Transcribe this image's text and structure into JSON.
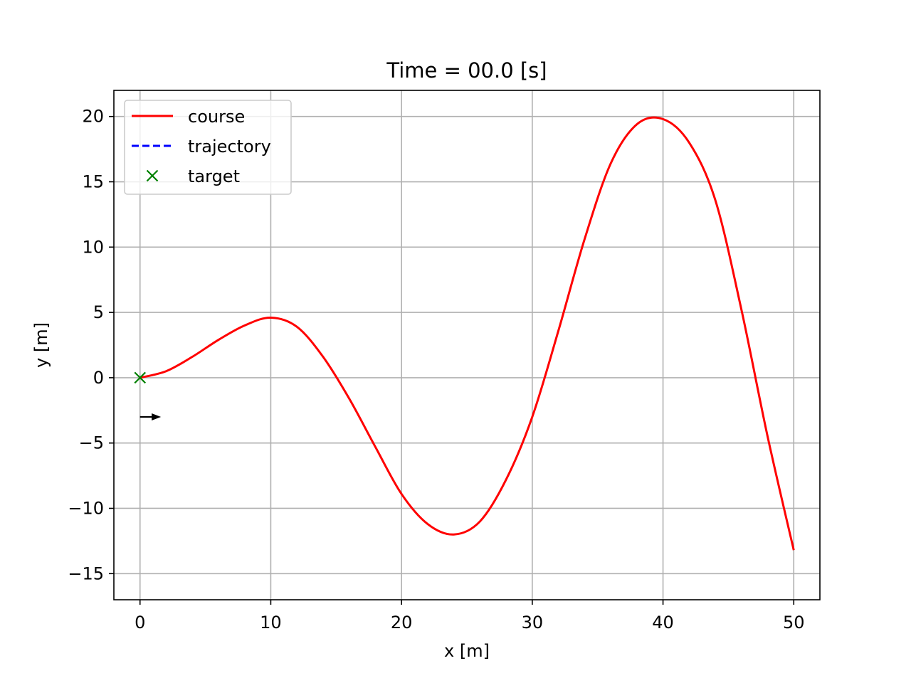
{
  "chart_data": {
    "type": "line",
    "title": "Time = 00.0 [s]",
    "xlabel": "x [m]",
    "ylabel": "y [m]",
    "xlim": [
      -2.0,
      52.0
    ],
    "ylim": [
      -17.0,
      22.0
    ],
    "grid": true,
    "legend_position": "top-left",
    "x_ticks": [
      0,
      10,
      20,
      30,
      40,
      50
    ],
    "x_tick_labels": [
      "0",
      "10",
      "20",
      "30",
      "40",
      "50"
    ],
    "y_ticks": [
      -15,
      -10,
      -5,
      0,
      5,
      10,
      15,
      20
    ],
    "y_tick_labels": [
      "−15",
      "−10",
      "−5",
      "0",
      "5",
      "10",
      "15",
      "20"
    ],
    "colors": {
      "course": "#ff0000",
      "trajectory": "#0000ff",
      "target": "#008000",
      "heading_arrow": "#000000"
    },
    "series": [
      {
        "name": "course",
        "style": "solid",
        "x": [
          0,
          2,
          4,
          6,
          8,
          10,
          12,
          14,
          16,
          18,
          20,
          22,
          24,
          26,
          28,
          30,
          32,
          34,
          36,
          38,
          40,
          42,
          44,
          46,
          48,
          50
        ],
        "y": [
          0.0,
          0.5,
          1.6,
          2.9,
          4.0,
          4.6,
          3.9,
          1.6,
          -1.6,
          -5.3,
          -8.9,
          -11.2,
          -12.0,
          -11.0,
          -7.8,
          -3.0,
          3.6,
          10.6,
          16.4,
          19.4,
          19.8,
          18.0,
          13.6,
          5.2,
          -4.5,
          -13.2
        ]
      },
      {
        "name": "trajectory",
        "style": "dashed",
        "x": [
          0
        ],
        "y": [
          0
        ]
      }
    ],
    "markers": [
      {
        "name": "target",
        "marker": "x",
        "x": 0,
        "y": 0
      }
    ],
    "heading_arrow": {
      "x": 0,
      "y": -3,
      "dx": 1.6,
      "dy": 0
    },
    "legend": [
      {
        "label": "course",
        "style": "solid"
      },
      {
        "label": "trajectory",
        "style": "dashed"
      },
      {
        "label": "target",
        "style": "x-marker"
      }
    ]
  }
}
